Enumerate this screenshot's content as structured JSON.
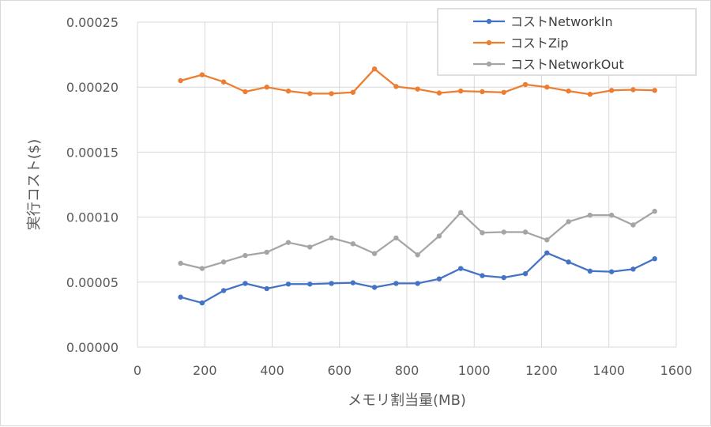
{
  "chart_data": {
    "type": "line",
    "xlabel": "メモリ割当量(MB)",
    "ylabel": "実行コスト($)",
    "xlim": [
      0,
      1600
    ],
    "ylim": [
      0,
      0.00025
    ],
    "x_ticks": [
      "0",
      "200",
      "400",
      "600",
      "800",
      "1000",
      "1200",
      "1400",
      "1600"
    ],
    "y_ticks": [
      "0.00000",
      "0.00005",
      "0.00010",
      "0.00015",
      "0.00020",
      "0.00025"
    ],
    "grid": true,
    "legend_position": "top-right",
    "x": [
      128,
      192,
      256,
      320,
      384,
      448,
      512,
      576,
      640,
      704,
      768,
      832,
      896,
      960,
      1024,
      1088,
      1152,
      1216,
      1280,
      1344,
      1408,
      1472,
      1536
    ],
    "series": [
      {
        "name": "コストNetworkIn",
        "color": "#4472c4",
        "values": [
          3.85e-05,
          3.4e-05,
          4.35e-05,
          4.9e-05,
          4.5e-05,
          4.85e-05,
          4.85e-05,
          4.9e-05,
          4.95e-05,
          4.6e-05,
          4.9e-05,
          4.9e-05,
          5.25e-05,
          6.05e-05,
          5.5e-05,
          5.35e-05,
          5.65e-05,
          7.25e-05,
          6.55e-05,
          5.85e-05,
          5.8e-05,
          6e-05,
          6.8e-05
        ]
      },
      {
        "name": "コストZip",
        "color": "#ed7d31",
        "values": [
          0.000205,
          0.0002095,
          0.000204,
          0.0001965,
          0.0002,
          0.000197,
          0.000195,
          0.000195,
          0.000196,
          0.000214,
          0.0002005,
          0.0001985,
          0.0001955,
          0.000197,
          0.0001965,
          0.000196,
          0.000202,
          0.0002,
          0.000197,
          0.0001945,
          0.0001975,
          0.000198,
          0.0001975
        ]
      },
      {
        "name": "コストNetworkOut",
        "color": "#a5a5a5",
        "values": [
          6.45e-05,
          6.05e-05,
          6.55e-05,
          7.05e-05,
          7.3e-05,
          8.05e-05,
          7.7e-05,
          8.4e-05,
          7.95e-05,
          7.2e-05,
          8.4e-05,
          7.1e-05,
          8.55e-05,
          0.0001035,
          8.8e-05,
          8.85e-05,
          8.85e-05,
          8.25e-05,
          9.65e-05,
          0.0001015,
          0.0001015,
          9.4e-05,
          0.0001045
        ]
      }
    ]
  }
}
